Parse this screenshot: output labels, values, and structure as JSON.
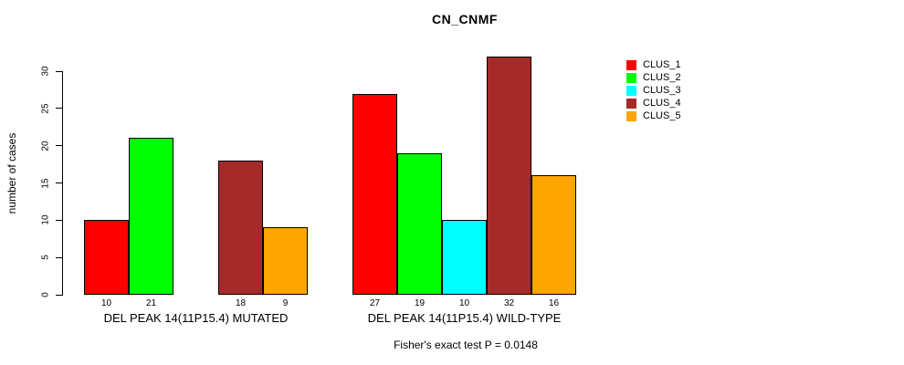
{
  "title": "CN_CNMF",
  "footer": "Fisher's exact test P = 0.0148",
  "chart_data": {
    "type": "bar",
    "title": "CN_CNMF",
    "xlabel": "",
    "ylabel": "number of cases",
    "ylim": [
      0,
      30
    ],
    "yticks": [
      0,
      5,
      10,
      15,
      20,
      25,
      30
    ],
    "grid": false,
    "legend_position": "top-right",
    "categories": [
      "DEL PEAK 14(11P15.4) MUTATED",
      "DEL PEAK 14(11P15.4) WILD-TYPE"
    ],
    "series": [
      {
        "name": "CLUS_1",
        "color": "#FF0000",
        "values": [
          10,
          27
        ]
      },
      {
        "name": "CLUS_2",
        "color": "#00FF00",
        "values": [
          21,
          19
        ]
      },
      {
        "name": "CLUS_3",
        "color": "#00FFFF",
        "values": [
          0,
          10
        ]
      },
      {
        "name": "CLUS_4",
        "color": "#A52A2A",
        "values": [
          18,
          32
        ]
      },
      {
        "name": "CLUS_5",
        "color": "#FFA500",
        "values": [
          9,
          16
        ]
      }
    ],
    "bar_value_labels": {
      "shown": true,
      "hide_zero": true,
      "group_1": [
        10,
        21,
        null,
        18,
        9
      ],
      "group_2": [
        27,
        19,
        10,
        32,
        16
      ]
    },
    "annotation": "Fisher's exact test P = 0.0148"
  },
  "colors": {
    "background": "#FFFFFF",
    "text": "#000000",
    "bar_border": "#000000",
    "axis": "#000000"
  }
}
